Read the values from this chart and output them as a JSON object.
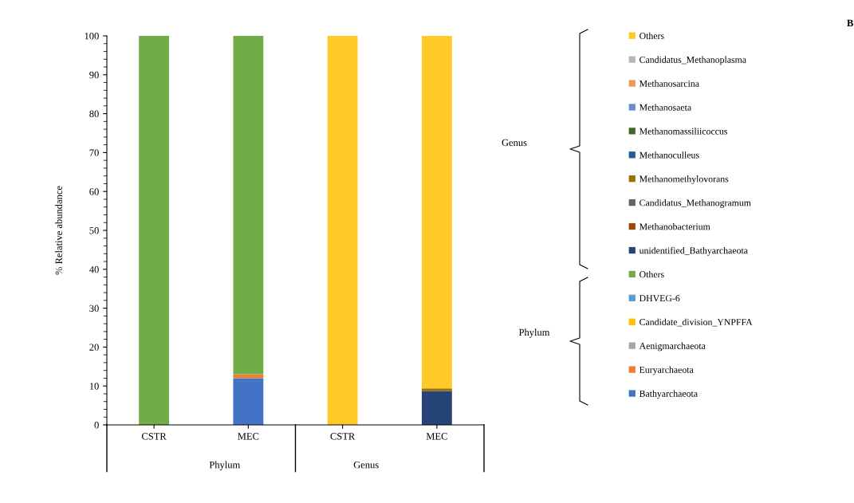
{
  "chart_data": {
    "type": "bar",
    "stacked": true,
    "ylabel": "% Relative abundance",
    "categories": [
      "CSTR",
      "MEC",
      "CSTR",
      "MEC"
    ],
    "ylim": [
      0,
      100
    ],
    "yticks": [
      0,
      10,
      20,
      30,
      40,
      50,
      60,
      70,
      80,
      90,
      100
    ],
    "grid": false,
    "legend": "right",
    "annotations": [
      "Phylum",
      "Genus",
      "Genus",
      "Phylum",
      "B"
    ],
    "series": [
      {
        "name": "Bathyarchaeota",
        "color": "#4472c4",
        "values": [
          0,
          12,
          0,
          0
        ]
      },
      {
        "name": "Euryarchaeota",
        "color": "#ed7d31",
        "values": [
          0,
          1,
          0,
          0
        ]
      },
      {
        "name": "Aenigmarchaeota",
        "color": "#a5a5a5",
        "values": [
          0,
          0,
          0,
          0
        ]
      },
      {
        "name": "Candidate_division_YNPFFA",
        "color": "#ffc000",
        "values": [
          0,
          0,
          0,
          0
        ]
      },
      {
        "name": "DHVEG-6",
        "color": "#5b9bd5",
        "values": [
          0,
          0,
          0,
          0
        ]
      },
      {
        "name": "Others",
        "color": "#70ad47",
        "values": [
          100,
          87,
          0,
          0
        ]
      },
      {
        "name": "unidentified_Bathyarchaeota",
        "color": "#264478",
        "values": [
          0,
          0,
          0,
          8.7
        ]
      },
      {
        "name": "Methanobacterium",
        "color": "#9e480e",
        "values": [
          0,
          0,
          0,
          0
        ]
      },
      {
        "name": "Candidatus_Methanogramum",
        "color": "#636363",
        "values": [
          0,
          0,
          0,
          0
        ]
      },
      {
        "name": "Methanomethylovorans",
        "color": "#997300",
        "values": [
          0,
          0,
          0,
          0.7
        ]
      },
      {
        "name": "Methanoculleus",
        "color": "#255e91",
        "values": [
          0,
          0,
          0,
          0
        ]
      },
      {
        "name": "Methanomassiliicoccus",
        "color": "#43682b",
        "values": [
          0,
          0,
          0,
          0
        ]
      },
      {
        "name": "Methanosaeta",
        "color": "#698ed0",
        "values": [
          0,
          0,
          0,
          0
        ]
      },
      {
        "name": "Methanosarcina",
        "color": "#f1975a",
        "values": [
          0,
          0,
          0,
          0
        ]
      },
      {
        "name": "Candidatus_Methanoplasma",
        "color": "#b7b7b7",
        "values": [
          0,
          0,
          0,
          0
        ]
      },
      {
        "name": "Others",
        "color": "#ffca28",
        "values": [
          0,
          0,
          100,
          90.6
        ]
      }
    ]
  }
}
